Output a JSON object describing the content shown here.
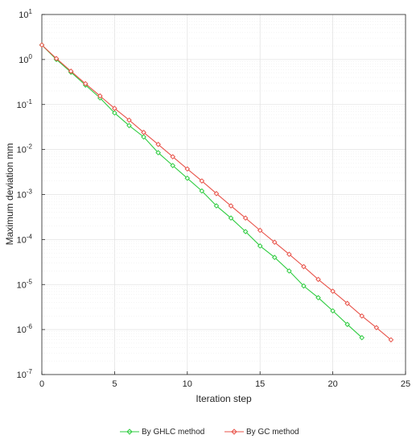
{
  "chart_data": {
    "type": "line",
    "xlabel": "Iteration step",
    "ylabel": "Maximum deviation mm",
    "xlim": [
      0,
      25
    ],
    "ylim_log10": [
      -7,
      1
    ],
    "y_scale": "log",
    "grid": true,
    "legend_placement": "bottom",
    "x_ticks": [
      "0",
      "5",
      "10",
      "15",
      "20",
      "25"
    ],
    "y_ticks": [
      {
        "base": "10",
        "exp": "1"
      },
      {
        "base": "10",
        "exp": "0"
      },
      {
        "base": "10",
        "exp": "-1"
      },
      {
        "base": "10",
        "exp": "-2"
      },
      {
        "base": "10",
        "exp": "-3"
      },
      {
        "base": "10",
        "exp": "-4"
      },
      {
        "base": "10",
        "exp": "-5"
      },
      {
        "base": "10",
        "exp": "-6"
      },
      {
        "base": "10",
        "exp": "-7"
      }
    ],
    "series": [
      {
        "name": "By GHLC method",
        "color": "#2ecc40",
        "x": [
          0,
          1,
          2,
          3,
          4,
          5,
          6,
          7,
          8,
          9,
          10,
          11,
          12,
          13,
          14,
          15,
          16,
          17,
          18,
          19,
          20,
          21,
          22
        ],
        "y": [
          2.1,
          1.0,
          0.52,
          0.27,
          0.14,
          0.065,
          0.034,
          0.019,
          0.0085,
          0.0044,
          0.0023,
          0.0012,
          0.00056,
          0.0003,
          0.00015,
          7.2e-05,
          4e-05,
          2e-05,
          9.3e-06,
          5.1e-06,
          2.6e-06,
          1.3e-06,
          6.6e-07
        ]
      },
      {
        "name": "By GC method",
        "color": "#e8534a",
        "x": [
          0,
          1,
          2,
          3,
          4,
          5,
          6,
          7,
          8,
          9,
          10,
          11,
          12,
          13,
          14,
          15,
          16,
          17,
          18,
          19,
          20,
          21,
          22,
          23,
          24
        ],
        "y": [
          2.1,
          1.05,
          0.55,
          0.29,
          0.155,
          0.082,
          0.045,
          0.024,
          0.013,
          0.0069,
          0.0037,
          0.002,
          0.00105,
          0.00056,
          0.0003,
          0.00016,
          8.7e-05,
          4.7e-05,
          2.5e-05,
          1.3e-05,
          7.1e-06,
          3.8e-06,
          2e-06,
          1.1e-06,
          5.9e-07
        ]
      }
    ]
  }
}
